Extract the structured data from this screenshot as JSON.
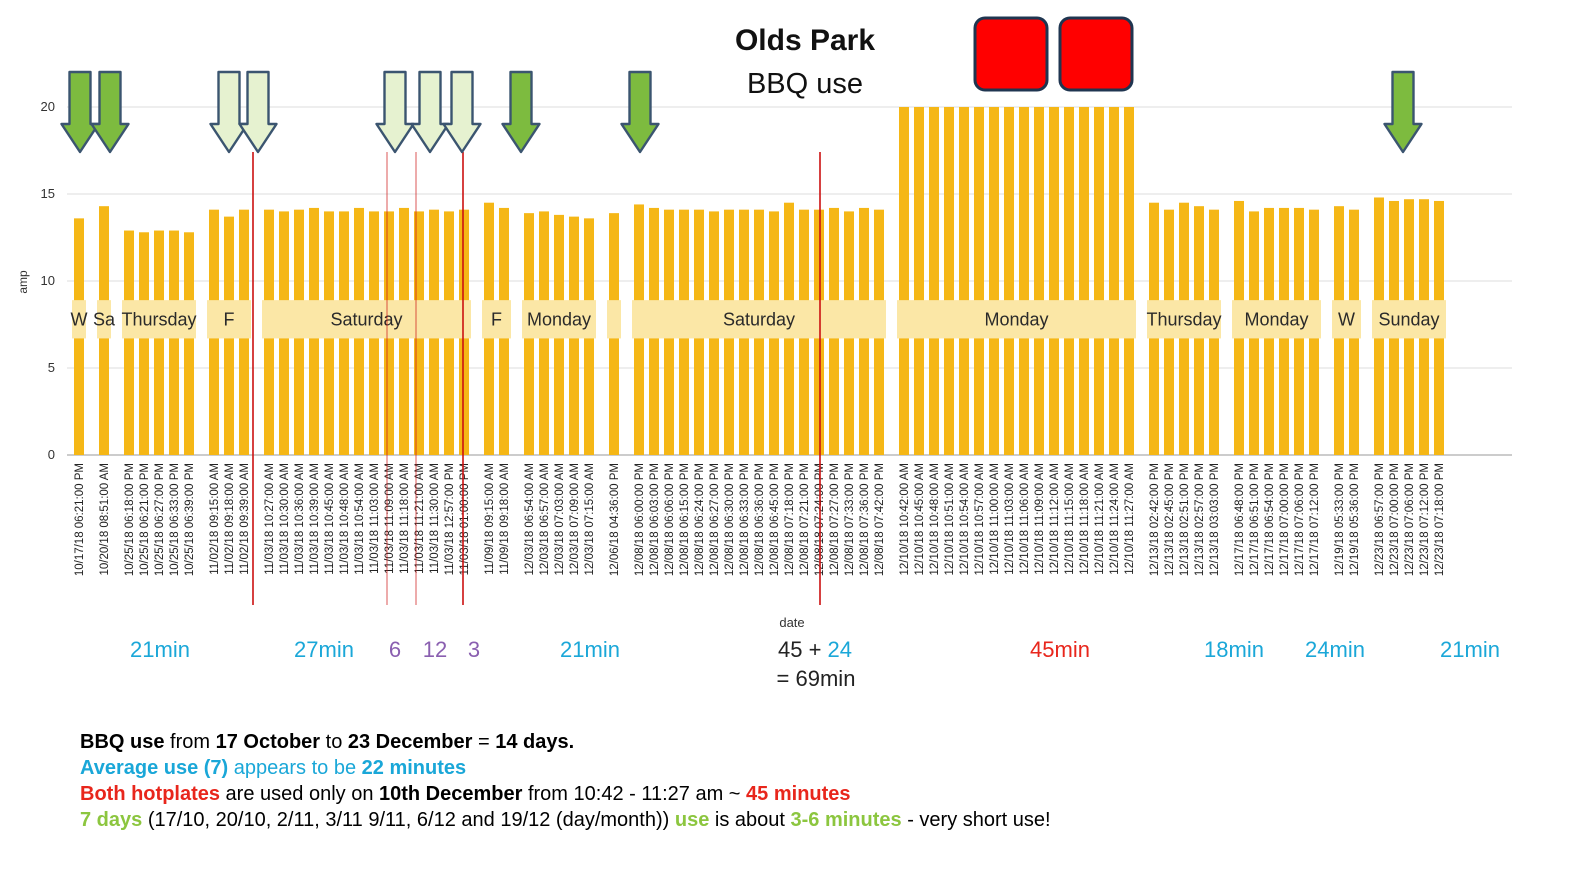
{
  "chart_data": {
    "type": "bar",
    "title": "Olds Park",
    "subtitle": "BBQ use",
    "xlabel": "date",
    "ylabel": "amp",
    "ylim": [
      0,
      22
    ],
    "yticks": [
      0,
      5,
      10,
      15,
      20
    ],
    "grid": true,
    "bar_color": "#f5b716",
    "groups": [
      {
        "day": "W",
        "bars": [
          [
            "10/17/18 06:21:00 PM",
            13.6
          ]
        ]
      },
      {
        "day": "Sa",
        "bars": [
          [
            "10/20/18 08:51:00 AM",
            14.3
          ]
        ]
      },
      {
        "day": "Thursday",
        "bars": [
          [
            "10/25/18 06:18:00 PM",
            12.9
          ],
          [
            "10/25/18 06:21:00 PM",
            12.8
          ],
          [
            "10/25/18 06:27:00 PM",
            12.9
          ],
          [
            "10/25/18 06:33:00 PM",
            12.9
          ],
          [
            "10/25/18 06:39:00 PM",
            12.8
          ]
        ]
      },
      {
        "day": "F",
        "bars": [
          [
            "11/02/18 09:15:00 AM",
            14.1
          ],
          [
            "11/02/18 09:18:00 AM",
            13.7
          ],
          [
            "11/02/18 09:39:00 AM",
            14.1
          ]
        ]
      },
      {
        "day": "Saturday",
        "bars": [
          [
            "11/03/18 10:27:00 AM",
            14.1
          ],
          [
            "11/03/18 10:30:00 AM",
            14.0
          ],
          [
            "11/03/18 10:36:00 AM",
            14.1
          ],
          [
            "11/03/18 10:39:00 AM",
            14.2
          ],
          [
            "11/03/18 10:45:00 AM",
            14.0
          ],
          [
            "11/03/18 10:48:00 AM",
            14.0
          ],
          [
            "11/03/18 10:54:00 AM",
            14.2
          ],
          [
            "11/03/18 11:03:00 AM",
            14.0
          ],
          [
            "11/03/18 11:09:00 AM",
            14.0
          ],
          [
            "11/03/18 11:18:00 AM",
            14.2
          ],
          [
            "11/03/18 11:21:00 AM",
            14.0
          ],
          [
            "11/03/18 11:30:00 AM",
            14.1
          ],
          [
            "11/03/18 12:57:00 PM",
            14.0
          ],
          [
            "11/03/18 01:00:00 PM",
            14.1
          ]
        ]
      },
      {
        "day": "F",
        "bars": [
          [
            "11/09/18 09:15:00 AM",
            14.5
          ],
          [
            "11/09/18 09:18:00 AM",
            14.2
          ]
        ]
      },
      {
        "day": "Monday",
        "bars": [
          [
            "12/03/18 06:54:00 AM",
            13.9
          ],
          [
            "12/03/18 06:57:00 AM",
            14.0
          ],
          [
            "12/03/18 07:03:00 AM",
            13.8
          ],
          [
            "12/03/18 07:09:00 AM",
            13.7
          ],
          [
            "12/03/18 07:15:00 AM",
            13.6
          ]
        ]
      },
      {
        "day": "",
        "bars": [
          [
            "12/06/18 04:36:00 PM",
            13.9
          ]
        ]
      },
      {
        "day": "Saturday",
        "bars": [
          [
            "12/08/18 06:00:00 PM",
            14.4
          ],
          [
            "12/08/18 06:03:00 PM",
            14.2
          ],
          [
            "12/08/18 06:06:00 PM",
            14.1
          ],
          [
            "12/08/18 06:15:00 PM",
            14.1
          ],
          [
            "12/08/18 06:24:00 PM",
            14.1
          ],
          [
            "12/08/18 06:27:00 PM",
            14.0
          ],
          [
            "12/08/18 06:30:00 PM",
            14.1
          ],
          [
            "12/08/18 06:33:00 PM",
            14.1
          ],
          [
            "12/08/18 06:36:00 PM",
            14.1
          ],
          [
            "12/08/18 06:45:00 PM",
            14.0
          ],
          [
            "12/08/18 07:18:00 PM",
            14.5
          ],
          [
            "12/08/18 07:21:00 PM",
            14.1
          ],
          [
            "12/08/18 07:24:00 PM",
            14.1
          ],
          [
            "12/08/18 07:27:00 PM",
            14.2
          ],
          [
            "12/08/18 07:33:00 PM",
            14.0
          ],
          [
            "12/08/18 07:36:00 PM",
            14.2
          ],
          [
            "12/08/18 07:42:00 PM",
            14.1
          ]
        ]
      },
      {
        "day": "Monday",
        "bars": [
          [
            "12/10/18 10:42:00 AM",
            20.0
          ],
          [
            "12/10/18 10:45:00 AM",
            20.0
          ],
          [
            "12/10/18 10:48:00 AM",
            20.0
          ],
          [
            "12/10/18 10:51:00 AM",
            20.0
          ],
          [
            "12/10/18 10:54:00 AM",
            20.0
          ],
          [
            "12/10/18 10:57:00 AM",
            20.0
          ],
          [
            "12/10/18 11:00:00 AM",
            20.0
          ],
          [
            "12/10/18 11:03:00 AM",
            20.0
          ],
          [
            "12/10/18 11:06:00 AM",
            20.0
          ],
          [
            "12/10/18 11:09:00 AM",
            20.0
          ],
          [
            "12/10/18 11:12:00 AM",
            20.0
          ],
          [
            "12/10/18 11:15:00 AM",
            20.0
          ],
          [
            "12/10/18 11:18:00 AM",
            20.0
          ],
          [
            "12/10/18 11:21:00 AM",
            20.0
          ],
          [
            "12/10/18 11:24:00 AM",
            20.0
          ],
          [
            "12/10/18 11:27:00 AM",
            20.0
          ]
        ]
      },
      {
        "day": "Thursday",
        "bars": [
          [
            "12/13/18 02:42:00 PM",
            14.5
          ],
          [
            "12/13/18 02:45:00 PM",
            14.1
          ],
          [
            "12/13/18 02:51:00 PM",
            14.5
          ],
          [
            "12/13/18 02:57:00 PM",
            14.3
          ],
          [
            "12/13/18 03:03:00 PM",
            14.1
          ]
        ]
      },
      {
        "day": "Monday",
        "bars": [
          [
            "12/17/18 06:48:00 PM",
            14.6
          ],
          [
            "12/17/18 06:51:00 PM",
            14.0
          ],
          [
            "12/17/18 06:54:00 PM",
            14.2
          ],
          [
            "12/17/18 07:00:00 PM",
            14.2
          ],
          [
            "12/17/18 07:06:00 PM",
            14.2
          ],
          [
            "12/17/18 07:12:00 PM",
            14.1
          ]
        ]
      },
      {
        "day": "W",
        "bars": [
          [
            "12/19/18 05:33:00 PM",
            14.3
          ],
          [
            "12/19/18 05:36:00 PM",
            14.1
          ]
        ]
      },
      {
        "day": "Sunday",
        "bars": [
          [
            "12/23/18 06:57:00 PM",
            14.8
          ],
          [
            "12/23/18 07:00:00 PM",
            14.6
          ],
          [
            "12/23/18 07:06:00 PM",
            14.7
          ],
          [
            "12/23/18 07:12:00 PM",
            14.7
          ],
          [
            "12/23/18 07:18:00 PM",
            14.6
          ]
        ]
      }
    ],
    "arrow_colors": {
      "green": "#7dbb3f",
      "pale": "#e6f2d0",
      "outline": "#3b5570"
    },
    "hotplate_color": "#ff0000",
    "reference_line_color": "#cc1111",
    "durations": [
      {
        "text": "21min",
        "color": "#1aa7d8"
      },
      {
        "text": "27min",
        "color": "#1aa7d8"
      },
      {
        "text": "6",
        "color": "#8a5fb0"
      },
      {
        "text": "12",
        "color": "#8a5fb0"
      },
      {
        "text": "3",
        "color": "#8a5fb0"
      },
      {
        "text": "21min",
        "color": "#1aa7d8"
      },
      {
        "text": "45min",
        "color": "#e8261c"
      },
      {
        "text": "18min",
        "color": "#1aa7d8"
      },
      {
        "text": "24min",
        "color": "#1aa7d8"
      },
      {
        "text": "21min",
        "color": "#1aa7d8"
      }
    ],
    "saturday_total": {
      "a": "45",
      "plus": "+",
      "b": "24",
      "line2": "= 69min"
    }
  },
  "notes": {
    "line1": {
      "a": "BBQ use",
      "b": " from ",
      "c": "17 October",
      "d": " to ",
      "e": "23 December",
      "f": " = ",
      "g": "14 days."
    },
    "line2": {
      "a": "Average use (7)",
      "b": " appears to be ",
      "c": "22 minutes"
    },
    "line3": {
      "a": "Both hotplates",
      "b": " are used only on ",
      "c": "10th December",
      "d": " from 10:42 - 11:27 am ~ ",
      "e": "45 minutes"
    },
    "line4": {
      "a": "7 days",
      "b": " (17/10, 20/10, 2/11, 3/11 9/11, 6/12 and 19/12 (day/month)) ",
      "c": "use",
      "d": " is about ",
      "e": "3-6 minutes",
      "f": " - very short use!"
    }
  }
}
